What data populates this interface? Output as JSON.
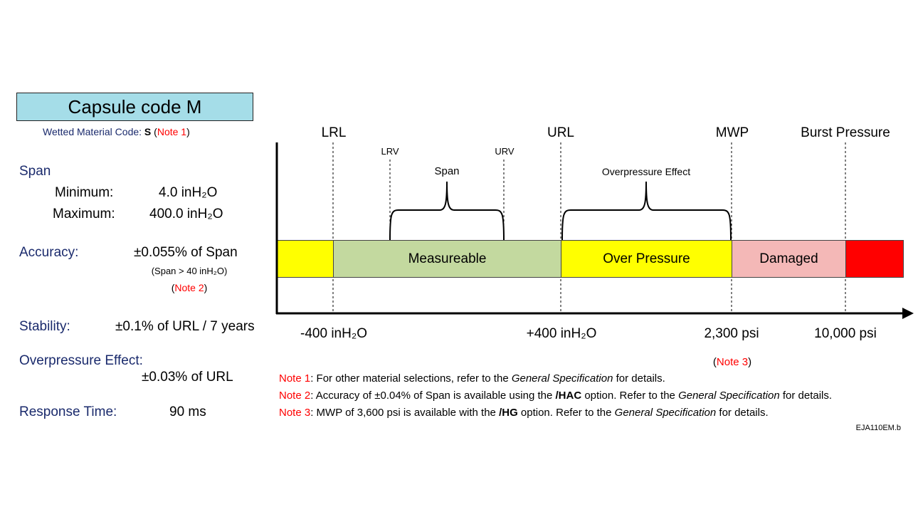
{
  "title": "Capsule code M",
  "wetted": {
    "label": "Wetted Material Code: ",
    "code": "S",
    "open": " (",
    "note": "Note 1",
    "close": ")"
  },
  "specs": {
    "span_label": "Span",
    "min_label": "Minimum:",
    "min_value": "4.0 inH₂O",
    "max_label": "Maximum:",
    "max_value": "400.0 inH₂O",
    "accuracy_label": "Accuracy:",
    "accuracy_value": "±0.055% of Span",
    "accuracy_cond": "(Span > 40 inH₂O)",
    "accuracy_note": "Note 2",
    "stability_label": "Stability:",
    "stability_value": "±0.1% of URL / 7 years",
    "overpressure_label": "Overpressure Effect:",
    "overpressure_value": "±0.03% of URL",
    "response_label": "Response Time:",
    "response_value": "90 ms"
  },
  "diagram": {
    "top_labels": [
      "LRL",
      "URL",
      "MWP",
      "Burst Pressure"
    ],
    "lrv": "LRV",
    "urv": "URV",
    "span_brace": "Span",
    "overpressure_brace": "Overpressure Effect",
    "segments": [
      {
        "label": "",
        "color": "#ffff00"
      },
      {
        "label": "Measureable",
        "color": "#c3d99f"
      },
      {
        "label": "Over Pressure",
        "color": "#ffff00"
      },
      {
        "label": "Damaged",
        "color": "#f4b8b7"
      },
      {
        "label": "",
        "color": "#ff0000"
      }
    ],
    "bottom_labels": [
      "-400 inH₂O",
      "+400 inH₂O",
      "2,300 psi",
      "10,000 psi"
    ],
    "note3_ref": "Note 3"
  },
  "notes": [
    {
      "tag": "Note 1",
      "parts": [
        ": For other material selections, refer to the ",
        "General Specification",
        " for details."
      ]
    },
    {
      "tag": "Note 2",
      "parts": [
        ": Accuracy of ±0.04% of Span is available using the ",
        "/HAC",
        " option. Refer to the ",
        "General Specification",
        " for details."
      ]
    },
    {
      "tag": "Note 3",
      "parts": [
        ": MWP of 3,600 psi is available with the ",
        "/HG",
        " option. Refer to the ",
        "General Specification",
        " for details."
      ]
    }
  ],
  "doc_id": "EJA110EM.b"
}
